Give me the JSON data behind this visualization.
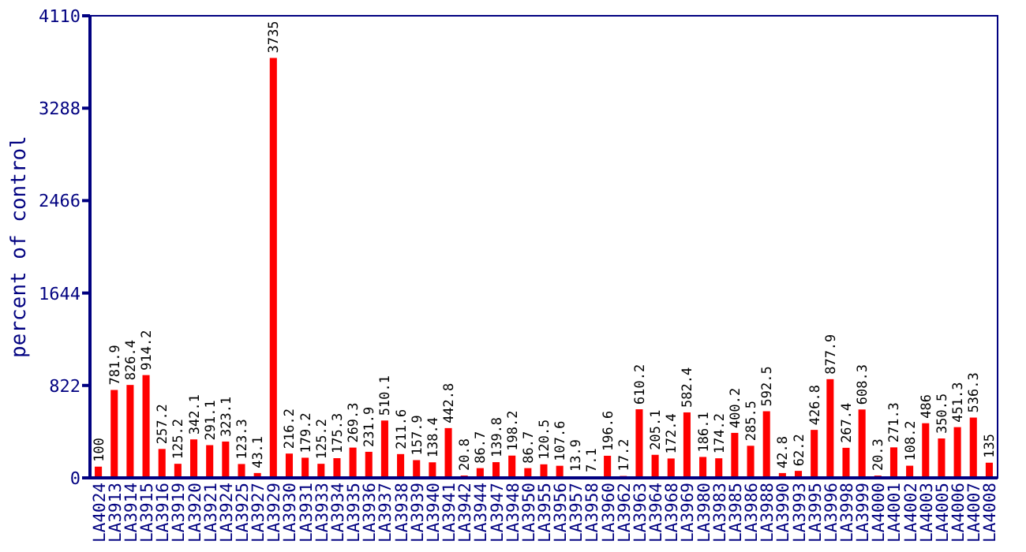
{
  "chart_data": {
    "type": "bar",
    "ylabel": "percent of control",
    "categories": [
      "LA4024",
      "LA3913",
      "LA3914",
      "LA3915",
      "LA3916",
      "LA3919",
      "LA3920",
      "LA3921",
      "LA3924",
      "LA3925",
      "LA3927",
      "LA3929",
      "LA3930",
      "LA3931",
      "LA3933",
      "LA3934",
      "LA3935",
      "LA3936",
      "LA3937",
      "LA3938",
      "LA3939",
      "LA3940",
      "LA3941",
      "LA3942",
      "LA3944",
      "LA3947",
      "LA3948",
      "LA3950",
      "LA3955",
      "LA3956",
      "LA3957",
      "LA3958",
      "LA3960",
      "LA3962",
      "LA3963",
      "LA3964",
      "LA3968",
      "LA3969",
      "LA3980",
      "LA3983",
      "LA3985",
      "LA3986",
      "LA3988",
      "LA3990",
      "LA3993",
      "LA3995",
      "LA3996",
      "LA3998",
      "LA3999",
      "LA4000",
      "LA4001",
      "LA4002",
      "LA4003",
      "LA4005",
      "LA4006",
      "LA4007",
      "LA4008"
    ],
    "values": [
      100,
      781.9,
      826.4,
      914.2,
      257.2,
      125.2,
      342.1,
      291.1,
      323.1,
      123.3,
      43.1,
      3735,
      216.2,
      179.2,
      125.2,
      175.3,
      269.3,
      231.9,
      510.1,
      211.6,
      157.9,
      138.4,
      442.8,
      20.8,
      86.7,
      139.8,
      198.2,
      86.7,
      120.5,
      107.6,
      13.9,
      7.1,
      196.6,
      17.2,
      610.2,
      205.1,
      172.4,
      582.4,
      186.1,
      174.2,
      400.2,
      285.5,
      592.5,
      42.8,
      62.2,
      426.8,
      877.9,
      267.4,
      608.3,
      20.3,
      271.3,
      108.2,
      486,
      350.5,
      451.3,
      536.3,
      135
    ],
    "color": "#ff0000",
    "ylim": [
      0,
      4110
    ],
    "yticks": [
      0,
      822,
      1644,
      2466,
      3288,
      4110
    ],
    "data_labels": true
  }
}
